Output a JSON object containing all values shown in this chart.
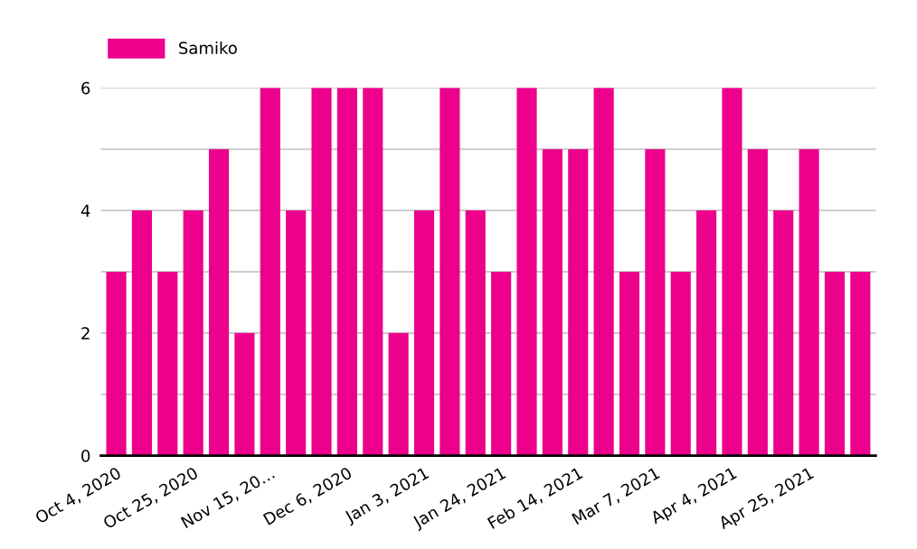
{
  "chart_data": {
    "type": "bar",
    "categories": [
      "Oct 4, 2020",
      null,
      null,
      "Oct 25, 2020",
      null,
      null,
      "Nov 15, 20…",
      null,
      null,
      "Dec 6, 2020",
      null,
      null,
      "Jan 3, 2021",
      null,
      null,
      "Jan 24, 2021",
      null,
      null,
      "Feb 14, 2021",
      null,
      null,
      "Mar 7, 2021",
      null,
      null,
      "Apr 4, 2021",
      null,
      null,
      "Apr 25, 2021",
      null,
      null
    ],
    "series": [
      {
        "name": "Samiko",
        "color": "#ec008c",
        "values": [
          3,
          4,
          3,
          4,
          5,
          2,
          6,
          4,
          6,
          6,
          6,
          2,
          4,
          6,
          4,
          3,
          6,
          5,
          5,
          6,
          3,
          5,
          3,
          4,
          6,
          5,
          4,
          5,
          3,
          3
        ]
      }
    ],
    "ylim": [
      0,
      6
    ],
    "yticks": [
      0,
      {
        "value": 1,
        "label": null
      },
      2,
      {
        "value": 3,
        "label": null
      },
      4,
      {
        "value": 5,
        "label": null
      },
      6
    ],
    "grid": "y",
    "legend": "top left"
  }
}
